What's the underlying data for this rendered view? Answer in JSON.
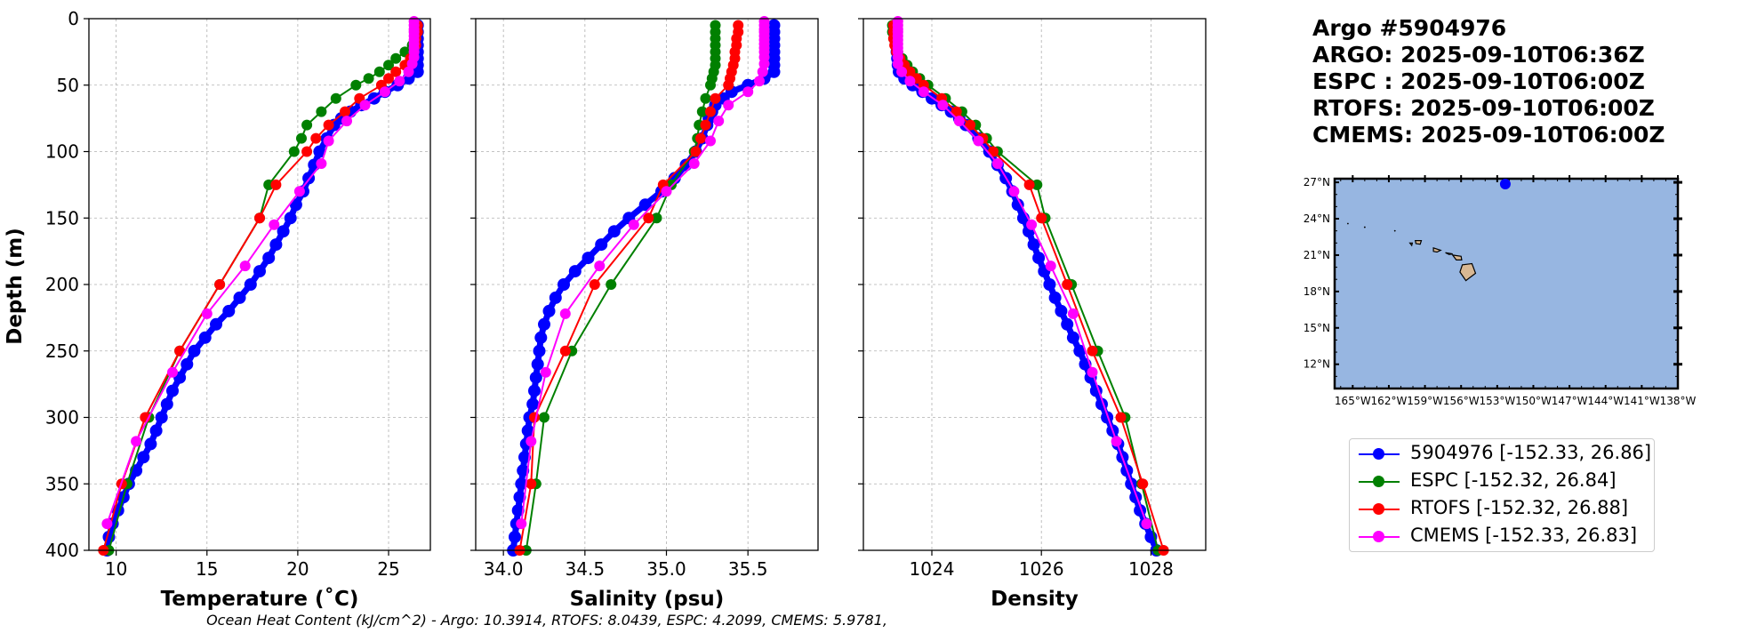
{
  "chart_data": [
    {
      "type": "line",
      "title": "",
      "xlabel": "Temperature (˚C)",
      "ylabel": "Depth (m)",
      "xlim": [
        8.5,
        27.3
      ],
      "ylim": [
        400,
        0
      ],
      "xticks": [
        10,
        15,
        20,
        25
      ],
      "yticks": [
        0,
        50,
        100,
        150,
        200,
        250,
        300,
        350,
        400
      ],
      "grid": true,
      "series": [
        {
          "name": "5904976",
          "color": "#0000ff",
          "depth": [
            5,
            10,
            15,
            20,
            25,
            30,
            35,
            40,
            45,
            50,
            55,
            60,
            65,
            70,
            75,
            80,
            90,
            100,
            110,
            120,
            130,
            140,
            150,
            160,
            170,
            180,
            190,
            200,
            210,
            220,
            230,
            240,
            250,
            260,
            270,
            280,
            290,
            300,
            310,
            320,
            330,
            340,
            350,
            360,
            370,
            380,
            390,
            400
          ],
          "values": [
            26.6,
            26.6,
            26.6,
            26.6,
            26.6,
            26.6,
            26.6,
            26.6,
            26.1,
            25.5,
            24.8,
            24.2,
            23.5,
            22.9,
            22.4,
            22.0,
            21.6,
            21.2,
            20.9,
            20.6,
            20.3,
            19.9,
            19.6,
            19.2,
            18.8,
            18.4,
            17.9,
            17.4,
            16.8,
            16.2,
            15.5,
            14.9,
            14.3,
            13.9,
            13.5,
            13.1,
            12.8,
            12.5,
            12.2,
            11.9,
            11.5,
            11.1,
            10.7,
            10.4,
            10.1,
            9.8,
            9.6,
            9.5
          ]
        },
        {
          "name": "ESPC",
          "color": "#008000",
          "depth": [
            5,
            10,
            15,
            20,
            25,
            30,
            35,
            40,
            45,
            50,
            60,
            70,
            80,
            90,
            100,
            125,
            150,
            200,
            250,
            300,
            350,
            400
          ],
          "values": [
            26.6,
            26.6,
            26.5,
            26.3,
            25.9,
            25.4,
            25.0,
            24.5,
            23.9,
            23.2,
            22.1,
            21.3,
            20.5,
            20.2,
            19.8,
            18.4,
            17.9,
            15.7,
            13.5,
            11.8,
            10.6,
            9.6
          ]
        },
        {
          "name": "RTOFS",
          "color": "#ff0000",
          "depth": [
            5,
            10,
            15,
            20,
            25,
            30,
            35,
            40,
            45,
            50,
            60,
            70,
            80,
            90,
            100,
            125,
            150,
            200,
            250,
            300,
            350,
            400
          ],
          "values": [
            26.6,
            26.6,
            26.5,
            26.5,
            26.4,
            26.2,
            25.9,
            25.4,
            25.0,
            24.6,
            23.4,
            22.6,
            21.7,
            21.0,
            20.5,
            18.8,
            17.9,
            15.7,
            13.5,
            11.6,
            10.3,
            9.3
          ]
        },
        {
          "name": "CMEMS",
          "color": "#ff00ff",
          "depth": [
            2,
            5,
            8,
            10,
            13,
            16,
            19,
            22,
            25,
            29,
            34,
            40,
            47,
            55,
            65,
            77,
            92,
            109,
            130,
            155,
            186,
            222,
            266,
            318,
            380
          ],
          "values": [
            26.4,
            26.4,
            26.4,
            26.4,
            26.4,
            26.4,
            26.4,
            26.4,
            26.4,
            26.4,
            26.3,
            26.1,
            25.6,
            24.8,
            23.7,
            22.7,
            21.7,
            21.3,
            20.1,
            18.7,
            17.1,
            15.0,
            13.1,
            11.1,
            9.5
          ]
        }
      ]
    },
    {
      "type": "line",
      "title": "",
      "xlabel": "Salinity (psu)",
      "ylabel": "",
      "xlim": [
        33.83,
        35.93
      ],
      "ylim": [
        400,
        0
      ],
      "xticks": [
        34.0,
        34.5,
        35.0,
        35.5
      ],
      "yticks": [
        0,
        50,
        100,
        150,
        200,
        250,
        300,
        350,
        400
      ],
      "grid": true,
      "series": [
        {
          "name": "5904976",
          "color": "#0000ff",
          "depth": [
            5,
            10,
            15,
            20,
            25,
            30,
            35,
            40,
            45,
            50,
            55,
            60,
            65,
            70,
            75,
            80,
            90,
            100,
            110,
            120,
            130,
            140,
            150,
            160,
            170,
            180,
            190,
            200,
            210,
            220,
            230,
            240,
            250,
            260,
            270,
            280,
            290,
            300,
            310,
            320,
            330,
            340,
            350,
            360,
            370,
            380,
            390,
            400
          ],
          "values": [
            35.66,
            35.66,
            35.66,
            35.66,
            35.66,
            35.66,
            35.66,
            35.66,
            35.6,
            35.5,
            35.4,
            35.35,
            35.3,
            35.28,
            35.26,
            35.25,
            35.22,
            35.18,
            35.12,
            35.05,
            34.97,
            34.87,
            34.77,
            34.68,
            34.6,
            34.52,
            34.44,
            34.37,
            34.32,
            34.28,
            34.25,
            34.23,
            34.22,
            34.21,
            34.2,
            34.19,
            34.18,
            34.16,
            34.15,
            34.14,
            34.13,
            34.12,
            34.11,
            34.1,
            34.09,
            34.08,
            34.07,
            34.06
          ]
        },
        {
          "name": "ESPC",
          "color": "#008000",
          "depth": [
            5,
            10,
            15,
            20,
            25,
            30,
            35,
            40,
            45,
            50,
            60,
            70,
            80,
            90,
            100,
            125,
            150,
            200,
            250,
            300,
            350,
            400
          ],
          "values": [
            35.3,
            35.3,
            35.3,
            35.3,
            35.3,
            35.3,
            35.3,
            35.29,
            35.28,
            35.27,
            35.24,
            35.22,
            35.2,
            35.19,
            35.17,
            35.03,
            34.94,
            34.66,
            34.42,
            34.25,
            34.2,
            34.14
          ]
        },
        {
          "name": "RTOFS",
          "color": "#ff0000",
          "depth": [
            5,
            10,
            15,
            20,
            25,
            30,
            35,
            40,
            45,
            50,
            60,
            70,
            80,
            90,
            100,
            125,
            150,
            200,
            250,
            300,
            350,
            400
          ],
          "values": [
            35.44,
            35.44,
            35.43,
            35.43,
            35.42,
            35.42,
            35.41,
            35.4,
            35.39,
            35.38,
            35.3,
            35.27,
            35.24,
            35.21,
            35.18,
            34.98,
            34.89,
            34.56,
            34.38,
            34.19,
            34.17,
            34.1
          ]
        },
        {
          "name": "CMEMS",
          "color": "#ff00ff",
          "depth": [
            2,
            5,
            8,
            10,
            13,
            16,
            19,
            22,
            25,
            29,
            34,
            40,
            47,
            55,
            65,
            77,
            92,
            109,
            130,
            155,
            186,
            222,
            266,
            318,
            380
          ],
          "values": [
            35.6,
            35.6,
            35.6,
            35.6,
            35.6,
            35.6,
            35.6,
            35.6,
            35.6,
            35.6,
            35.6,
            35.59,
            35.57,
            35.5,
            35.38,
            35.32,
            35.27,
            35.17,
            35.0,
            34.8,
            34.59,
            34.38,
            34.26,
            34.17,
            34.11
          ]
        }
      ]
    },
    {
      "type": "line",
      "title": "",
      "xlabel": "Density",
      "ylabel": "",
      "xlim": [
        1022.75,
        1029.0
      ],
      "ylim": [
        400,
        0
      ],
      "xticks": [
        1024,
        1026,
        1028
      ],
      "yticks": [
        0,
        50,
        100,
        150,
        200,
        250,
        300,
        350,
        400
      ],
      "grid": true,
      "series": [
        {
          "name": "5904976",
          "color": "#0000ff",
          "depth": [
            5,
            10,
            15,
            20,
            25,
            30,
            35,
            40,
            45,
            50,
            55,
            60,
            65,
            70,
            75,
            80,
            90,
            100,
            110,
            120,
            130,
            140,
            150,
            160,
            170,
            180,
            190,
            200,
            210,
            220,
            230,
            240,
            250,
            260,
            270,
            280,
            290,
            300,
            310,
            320,
            330,
            340,
            350,
            360,
            370,
            380,
            390,
            400
          ],
          "values": [
            1023.33,
            1023.33,
            1023.34,
            1023.35,
            1023.36,
            1023.37,
            1023.38,
            1023.4,
            1023.5,
            1023.65,
            1023.83,
            1024.0,
            1024.18,
            1024.35,
            1024.5,
            1024.62,
            1024.85,
            1025.05,
            1025.2,
            1025.35,
            1025.47,
            1025.57,
            1025.67,
            1025.77,
            1025.86,
            1025.95,
            1026.05,
            1026.15,
            1026.25,
            1026.36,
            1026.47,
            1026.58,
            1026.7,
            1026.8,
            1026.9,
            1027.0,
            1027.1,
            1027.2,
            1027.3,
            1027.4,
            1027.48,
            1027.56,
            1027.64,
            1027.72,
            1027.8,
            1027.9,
            1028.0,
            1028.1
          ]
        },
        {
          "name": "ESPC",
          "color": "#008000",
          "depth": [
            5,
            10,
            15,
            20,
            25,
            30,
            35,
            40,
            45,
            50,
            60,
            70,
            80,
            90,
            100,
            125,
            150,
            200,
            250,
            300,
            350,
            400
          ],
          "values": [
            1023.28,
            1023.28,
            1023.3,
            1023.33,
            1023.38,
            1023.46,
            1023.55,
            1023.65,
            1023.78,
            1023.93,
            1024.25,
            1024.55,
            1024.8,
            1025.0,
            1025.2,
            1025.92,
            1026.07,
            1026.55,
            1027.03,
            1027.53,
            1027.83,
            1028.13
          ]
        },
        {
          "name": "RTOFS",
          "color": "#ff0000",
          "depth": [
            5,
            10,
            15,
            20,
            25,
            30,
            35,
            40,
            45,
            50,
            60,
            70,
            80,
            90,
            100,
            125,
            150,
            200,
            250,
            300,
            350,
            400
          ],
          "values": [
            1023.3,
            1023.3,
            1023.3,
            1023.32,
            1023.35,
            1023.42,
            1023.5,
            1023.6,
            1023.72,
            1023.85,
            1024.18,
            1024.45,
            1024.7,
            1024.93,
            1025.12,
            1025.78,
            1026.0,
            1026.47,
            1026.93,
            1027.45,
            1027.85,
            1028.23
          ]
        },
        {
          "name": "CMEMS",
          "color": "#ff00ff",
          "depth": [
            2,
            5,
            8,
            10,
            13,
            16,
            19,
            22,
            25,
            29,
            34,
            40,
            47,
            55,
            65,
            77,
            92,
            109,
            130,
            155,
            186,
            222,
            266,
            318,
            380
          ],
          "values": [
            1023.38,
            1023.38,
            1023.38,
            1023.38,
            1023.38,
            1023.38,
            1023.38,
            1023.38,
            1023.38,
            1023.38,
            1023.38,
            1023.45,
            1023.6,
            1023.85,
            1024.2,
            1024.5,
            1024.85,
            1025.2,
            1025.5,
            1025.82,
            1026.17,
            1026.58,
            1026.93,
            1027.37,
            1027.92
          ]
        }
      ]
    }
  ],
  "panel_title": [
    "Argo #5904976",
    "ARGO: 2025-09-10T06:36Z",
    "ESPC : 2025-09-10T06:00Z",
    "RTOFS: 2025-09-10T06:00Z",
    "CMEMS: 2025-09-10T06:00Z"
  ],
  "map": {
    "lon_range": [
      -166.5,
      -138
    ],
    "lat_range": [
      10,
      27.3
    ],
    "lat_ticks": [
      "27°N",
      "24°N",
      "21°N",
      "18°N",
      "15°N",
      "12°N"
    ],
    "lon_ticks": [
      "165°W",
      "162°W",
      "159°W",
      "156°W",
      "153°W",
      "150°W",
      "147°W",
      "144°W",
      "141°W",
      "138°W"
    ],
    "ocean_color": "#97b6e1",
    "land_color": "#d9b893",
    "float_marker": {
      "lon": -152.33,
      "lat": 26.86,
      "color": "#0000ff"
    }
  },
  "legend": [
    {
      "label": "5904976 [-152.33, 26.86]",
      "color": "#0000ff"
    },
    {
      "label": "ESPC [-152.32, 26.84]",
      "color": "#008000"
    },
    {
      "label": "RTOFS [-152.32, 26.88]",
      "color": "#ff0000"
    },
    {
      "label": "CMEMS [-152.33, 26.83]",
      "color": "#ff00ff"
    }
  ],
  "footer": "Ocean Heat Content (kJ/cm^2) - Argo: 10.3914,  RTOFS: 8.0439,  ESPC: 4.2099,  CMEMS: 5.9781,"
}
